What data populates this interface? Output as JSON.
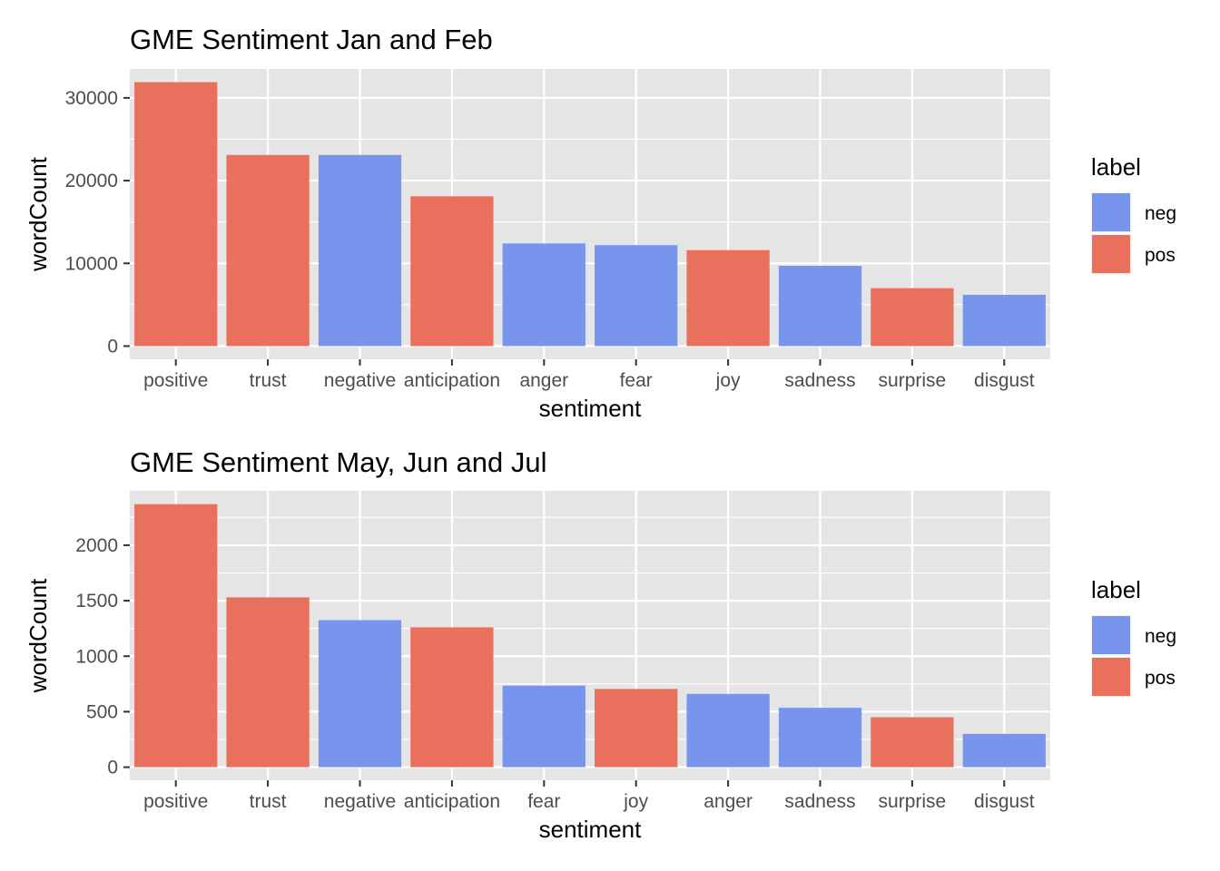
{
  "chart_data": [
    {
      "type": "bar",
      "title": "GME Sentiment Jan and Feb",
      "xlabel": "sentiment",
      "ylabel": "wordCount",
      "categories": [
        "positive",
        "trust",
        "negative",
        "anticipation",
        "anger",
        "fear",
        "joy",
        "sadness",
        "surprise",
        "disgust"
      ],
      "values": [
        31900,
        23100,
        23100,
        18100,
        12400,
        12200,
        11600,
        9700,
        7000,
        6200
      ],
      "labels": [
        "pos",
        "pos",
        "neg",
        "pos",
        "neg",
        "neg",
        "pos",
        "neg",
        "pos",
        "neg"
      ],
      "yticks": [
        0,
        10000,
        20000,
        30000
      ],
      "ytick_labels": [
        "0",
        "10000",
        "20000",
        "30000"
      ],
      "ylim": [
        -1595,
        33495
      ],
      "grid": true,
      "legend": {
        "title": "label",
        "placement": "right",
        "entries": [
          {
            "name": "neg",
            "color": "#7895EE"
          },
          {
            "name": "pos",
            "color": "#E8705C"
          }
        ]
      }
    },
    {
      "type": "bar",
      "title": "GME Sentiment May, Jun and Jul",
      "xlabel": "sentiment",
      "ylabel": "wordCount",
      "categories": [
        "positive",
        "trust",
        "negative",
        "anticipation",
        "fear",
        "joy",
        "anger",
        "sadness",
        "surprise",
        "disgust"
      ],
      "values": [
        2370,
        1530,
        1325,
        1260,
        735,
        705,
        660,
        535,
        450,
        300
      ],
      "labels": [
        "pos",
        "pos",
        "neg",
        "pos",
        "neg",
        "pos",
        "neg",
        "neg",
        "pos",
        "neg"
      ],
      "yticks": [
        0,
        500,
        1000,
        1500,
        2000
      ],
      "ytick_labels": [
        "0",
        "500",
        "1000",
        "1500",
        "2000"
      ],
      "ylim": [
        -118,
        2490
      ],
      "grid": true,
      "legend": {
        "title": "label",
        "placement": "right",
        "entries": [
          {
            "name": "neg",
            "color": "#7895EE"
          },
          {
            "name": "pos",
            "color": "#E8705C"
          }
        ]
      }
    }
  ],
  "colors": {
    "panel_background": "#E5E5E5",
    "grid": "#FFFFFF",
    "neg": "#7895EE",
    "pos": "#E8705C",
    "tick_text": "#4D4D4D"
  }
}
